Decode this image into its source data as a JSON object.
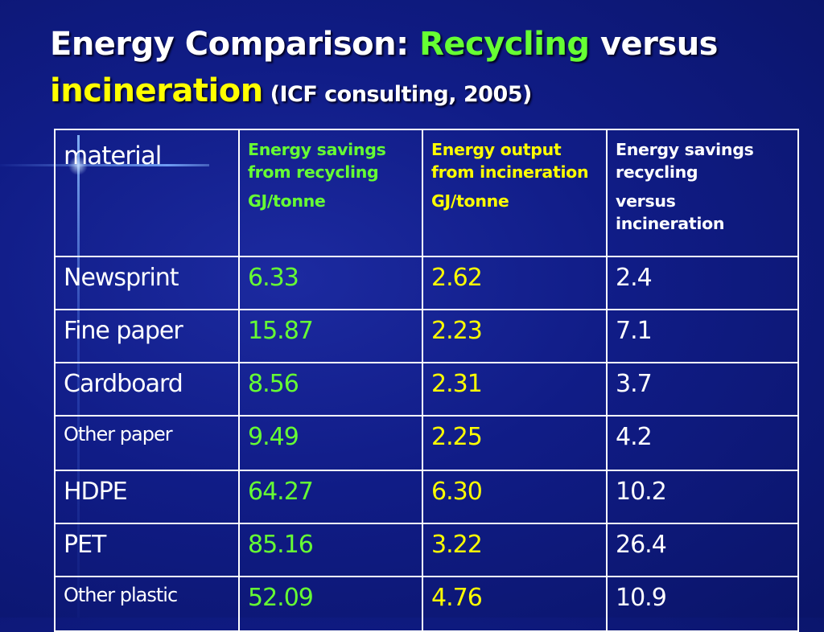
{
  "title": {
    "part1": "Energy Comparison: ",
    "part2": "Recycling",
    "part3": " versus",
    "part4": "incineration",
    "part5": " (ICF consulting, 2005)"
  },
  "table": {
    "headers": {
      "material": "material",
      "col1_line1": "Energy savings from recycling",
      "col1_line2": "GJ/tonne",
      "col2_line1": "Energy output from incineration",
      "col2_line2": "GJ/tonne",
      "col3_line1": "Energy savings recycling",
      "col3_line2": "versus incineration"
    },
    "rows": [
      {
        "material": "Newsprint",
        "recycling": "6.33",
        "incineration": "2.62",
        "savings": "2.4"
      },
      {
        "material": "Fine paper",
        "recycling": "15.87",
        "incineration": "2.23",
        "savings": "7.1"
      },
      {
        "material": "Cardboard",
        "recycling": "8.56",
        "incineration": "2.31",
        "savings": "3.7"
      },
      {
        "material": "Other paper",
        "recycling": "9.49",
        "incineration": "2.25",
        "savings": "4.2"
      },
      {
        "material": "HDPE",
        "recycling": "64.27",
        "incineration": "6.30",
        "savings": "10.2"
      },
      {
        "material": "PET",
        "recycling": "85.16",
        "incineration": "3.22",
        "savings": "26.4"
      },
      {
        "material": "Other plastic",
        "recycling": "52.09",
        "incineration": "4.76",
        "savings": "10.9"
      }
    ]
  },
  "colors": {
    "background": "#101c86",
    "recycling_green": "#66ff33",
    "incineration_yellow": "#ffff00",
    "text_white": "#ffffff"
  }
}
